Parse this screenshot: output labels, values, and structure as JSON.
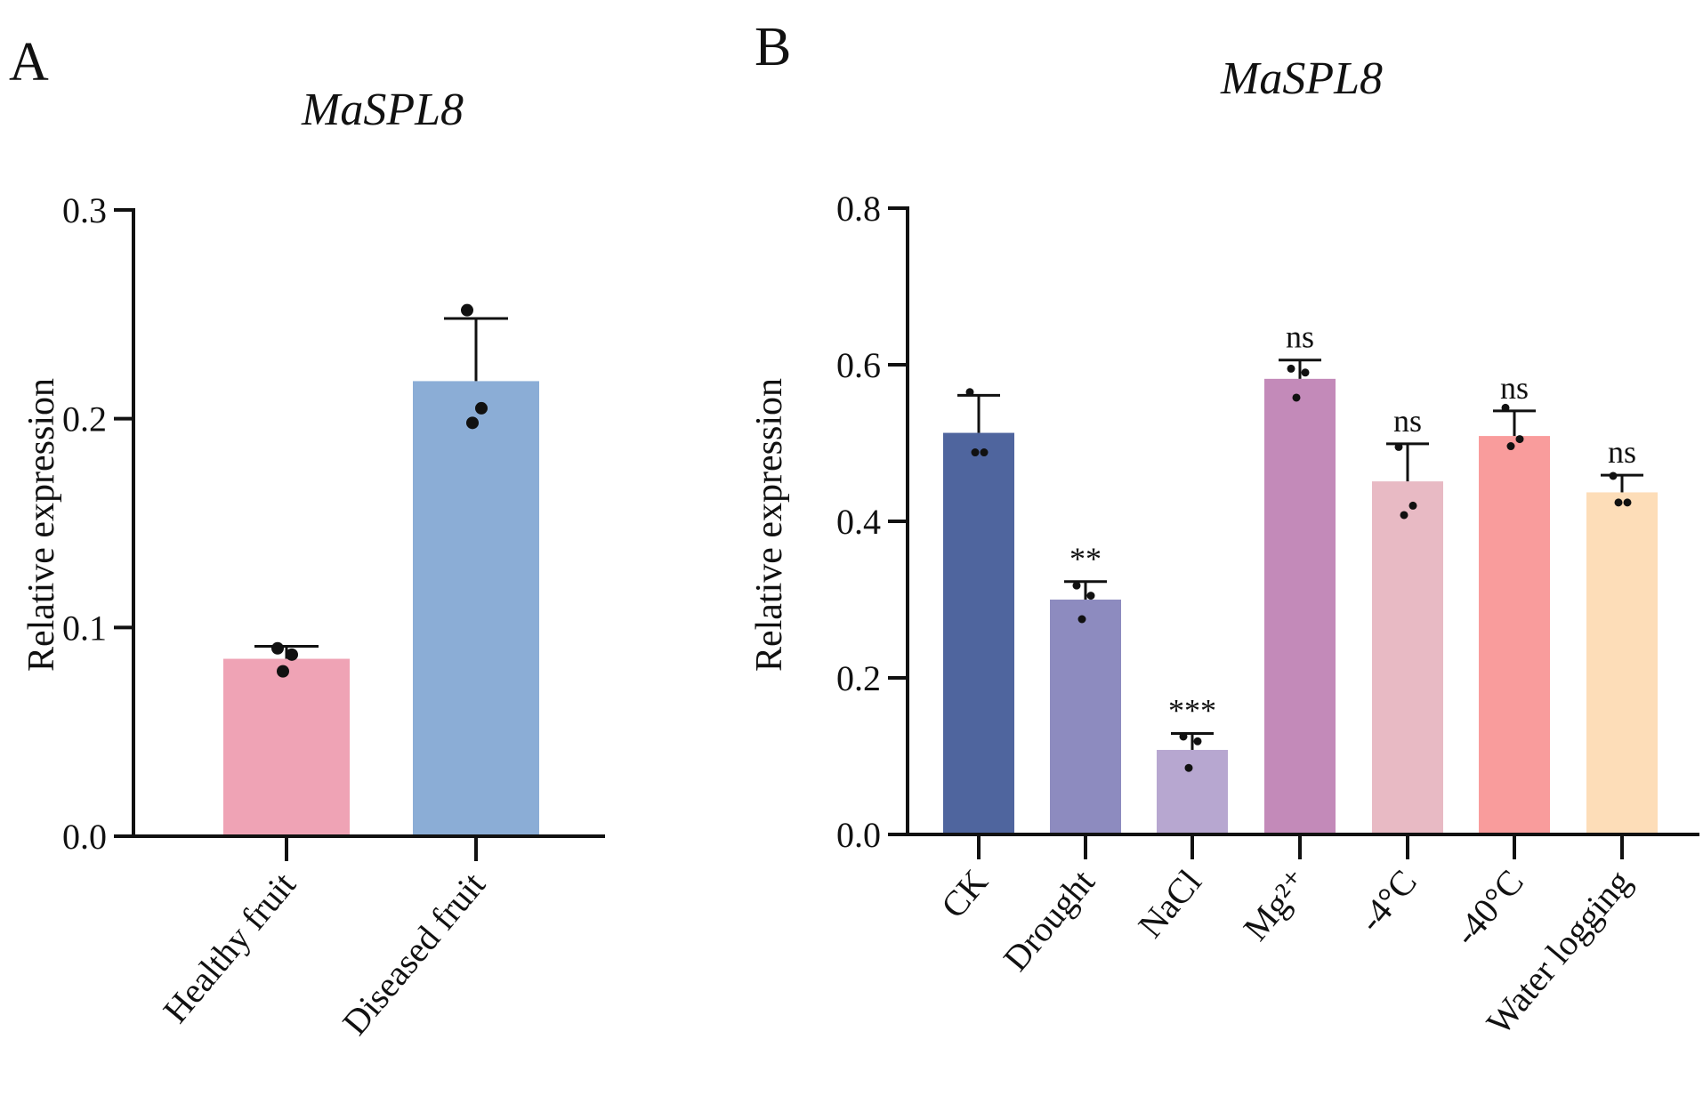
{
  "chart_data": [
    {
      "panel": "A",
      "type": "bar",
      "title": "MaSPL8",
      "xlabel": "",
      "ylabel": "Relative expression",
      "ylim": [
        0,
        0.3
      ],
      "yticks": [
        "0.0",
        "0.1",
        "0.2",
        "0.3"
      ],
      "categories": [
        "Healthy fruit",
        "Diseased fruit"
      ],
      "values": [
        0.085,
        0.218
      ],
      "errors": [
        0.006,
        0.03
      ],
      "points": [
        [
          0.09,
          0.087,
          0.079
        ],
        [
          0.252,
          0.205,
          0.198
        ]
      ],
      "significance": [
        "",
        ""
      ],
      "colors": [
        "#EFA3B5",
        "#8BADD6"
      ]
    },
    {
      "panel": "B",
      "type": "bar",
      "title": "MaSPL8",
      "xlabel": "",
      "ylabel": "Relative expression",
      "ylim": [
        0,
        0.8
      ],
      "yticks": [
        "0.0",
        "0.2",
        "0.4",
        "0.6",
        "0.8"
      ],
      "categories": [
        "CK",
        "Drought",
        "NaCl",
        "Mg²⁺",
        "-4°C",
        "-40°C",
        "Water logging"
      ],
      "values": [
        0.513,
        0.3,
        0.108,
        0.582,
        0.451,
        0.509,
        0.437
      ],
      "errors": [
        0.048,
        0.023,
        0.021,
        0.024,
        0.048,
        0.032,
        0.022
      ],
      "points": [
        [
          0.565,
          0.488,
          0.488
        ],
        [
          0.318,
          0.305,
          0.275
        ],
        [
          0.125,
          0.119,
          0.085
        ],
        [
          0.595,
          0.59,
          0.558
        ],
        [
          0.495,
          0.42,
          0.408
        ],
        [
          0.545,
          0.505,
          0.496
        ],
        [
          0.458,
          0.424,
          0.424
        ]
      ],
      "significance": [
        "",
        "**",
        "***",
        "ns",
        "ns",
        "ns",
        "ns"
      ],
      "colors": [
        "#4F659E",
        "#8D8BBF",
        "#B7A7D0",
        "#C38AB9",
        "#E8BAC4",
        "#F99C9C",
        "#FDDDB8"
      ]
    }
  ]
}
